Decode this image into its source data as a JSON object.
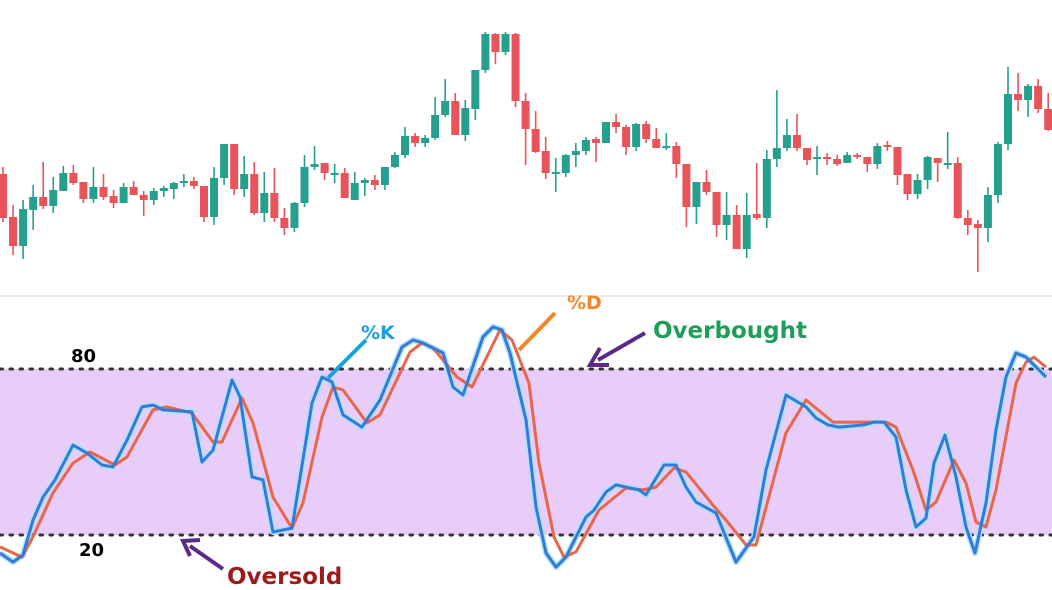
{
  "chart_data": [
    {
      "type": "candlestick",
      "title": "",
      "xlabel": "",
      "ylabel": "",
      "grid": false,
      "colors": {
        "up": "#26a08e",
        "down": "#e8545a"
      },
      "candles_ohlc": [
        [
          126,
          133,
          78,
          82
        ],
        [
          83,
          95,
          45,
          54
        ],
        [
          54,
          100,
          41,
          91
        ],
        [
          90,
          115,
          70,
          103
        ],
        [
          103,
          138,
          91,
          94
        ],
        [
          94,
          123,
          87,
          110
        ],
        [
          109,
          134,
          109,
          127
        ],
        [
          127,
          135,
          115,
          117
        ],
        [
          118,
          118,
          97,
          101
        ],
        [
          101,
          133,
          97,
          113
        ],
        [
          113,
          126,
          100,
          103
        ],
        [
          104,
          110,
          92,
          97
        ],
        [
          97,
          117,
          97,
          113
        ],
        [
          113,
          119,
          105,
          105
        ],
        [
          105,
          109,
          84,
          100
        ],
        [
          100,
          112,
          95,
          109
        ],
        [
          109,
          114,
          103,
          112
        ],
        [
          111,
          118,
          101,
          117
        ],
        [
          117,
          126,
          113,
          119
        ],
        [
          119,
          123,
          111,
          114
        ],
        [
          114,
          114,
          78,
          83
        ],
        [
          83,
          133,
          75,
          122
        ],
        [
          122,
          156,
          115,
          156
        ],
        [
          156,
          156,
          105,
          111
        ],
        [
          111,
          144,
          103,
          126
        ],
        [
          126,
          138,
          85,
          87
        ],
        [
          87,
          128,
          78,
          107
        ],
        [
          107,
          132,
          78,
          82
        ],
        [
          82,
          92,
          65,
          72
        ],
        [
          72,
          98,
          68,
          97
        ],
        [
          97,
          145,
          93,
          133
        ],
        [
          133,
          154,
          130,
          136
        ],
        [
          137,
          137,
          120,
          127
        ],
        [
          127,
          136,
          117,
          127
        ],
        [
          127,
          132,
          102,
          102
        ],
        [
          100,
          128,
          100,
          117
        ],
        [
          117,
          122,
          104,
          120
        ],
        [
          120,
          125,
          110,
          115
        ],
        [
          115,
          133,
          110,
          133
        ],
        [
          133,
          148,
          132,
          145
        ],
        [
          145,
          173,
          142,
          164
        ],
        [
          164,
          167,
          153,
          157
        ],
        [
          157,
          165,
          153,
          162
        ],
        [
          162,
          203,
          160,
          185
        ],
        [
          185,
          221,
          183,
          199
        ],
        [
          199,
          207,
          165,
          165
        ],
        [
          165,
          200,
          159,
          192
        ],
        [
          191,
          230,
          180,
          230
        ],
        [
          230,
          268,
          227,
          266
        ],
        [
          266,
          267,
          236,
          248
        ],
        [
          248,
          268,
          245,
          266
        ],
        [
          266,
          267,
          193,
          199
        ],
        [
          199,
          207,
          135,
          171
        ],
        [
          171,
          189,
          147,
          148
        ],
        [
          149,
          163,
          121,
          127
        ],
        [
          128,
          142,
          108,
          128
        ],
        [
          127,
          146,
          123,
          145
        ],
        [
          145,
          157,
          133,
          149
        ],
        [
          149,
          163,
          145,
          160
        ],
        [
          161,
          163,
          138,
          157
        ],
        [
          157,
          178,
          157,
          178
        ],
        [
          178,
          186,
          167,
          173
        ],
        [
          173,
          175,
          145,
          153
        ],
        [
          153,
          177,
          149,
          176
        ],
        [
          176,
          179,
          157,
          161
        ],
        [
          161,
          172,
          152,
          152
        ],
        [
          152,
          167,
          150,
          154
        ],
        [
          154,
          158,
          122,
          136
        ],
        [
          136,
          136,
          73,
          93
        ],
        [
          93,
          118,
          76,
          118
        ],
        [
          118,
          130,
          105,
          108
        ],
        [
          108,
          108,
          63,
          75
        ],
        [
          75,
          108,
          60,
          85
        ],
        [
          85,
          95,
          51,
          51
        ],
        [
          51,
          107,
          42,
          85
        ],
        [
          86,
          137,
          80,
          82
        ],
        [
          82,
          150,
          72,
          141
        ],
        [
          141,
          210,
          133,
          152
        ],
        [
          152,
          181,
          149,
          165
        ],
        [
          165,
          186,
          149,
          152
        ],
        [
          152,
          152,
          135,
          140
        ],
        [
          141,
          154,
          125,
          143
        ],
        [
          143,
          147,
          135,
          141
        ],
        [
          141,
          145,
          134,
          136
        ],
        [
          137,
          148,
          137,
          145
        ],
        [
          145,
          147,
          141,
          143
        ],
        [
          143,
          143,
          128,
          136
        ],
        [
          136,
          157,
          131,
          154
        ],
        [
          155,
          159,
          149,
          153
        ],
        [
          153,
          153,
          115,
          125
        ],
        [
          126,
          126,
          100,
          106
        ],
        [
          106,
          126,
          101,
          120
        ],
        [
          120,
          144,
          111,
          143
        ],
        [
          142,
          142,
          118,
          137
        ],
        [
          137,
          168,
          131,
          137
        ],
        [
          137,
          143,
          81,
          82
        ],
        [
          82,
          90,
          65,
          75
        ],
        [
          76,
          80,
          28,
          72
        ],
        [
          72,
          113,
          58,
          105
        ],
        [
          105,
          158,
          97,
          156
        ],
        [
          156,
          233,
          150,
          206
        ],
        [
          206,
          227,
          189,
          200
        ],
        [
          200,
          216,
          183,
          214
        ],
        [
          214,
          221,
          187,
          191
        ],
        [
          191,
          207,
          169,
          170
        ]
      ]
    },
    {
      "type": "line",
      "title": "",
      "xlabel": "",
      "ylabel": "",
      "ylim": [
        8,
        97
      ],
      "grid": false,
      "levels": [
        {
          "value": 80,
          "label": "80",
          "annotation": "Overbought"
        },
        {
          "value": 20,
          "label": "20",
          "annotation": "Oversold"
        }
      ],
      "band_color": "#e8ccfa",
      "series": [
        {
          "name": "%K",
          "color": "#3a78d8",
          "label_color": "#1aa0e0",
          "points": [
            [
              0,
              13.5
            ],
            [
              1.3,
              10.2
            ],
            [
              2.3,
              12.8
            ],
            [
              3.3,
              25.4
            ],
            [
              4.3,
              33.7
            ],
            [
              5.5,
              39.9
            ],
            [
              7.3,
              52.5
            ],
            [
              8.7,
              49.6
            ],
            [
              10.2,
              45.3
            ],
            [
              11.3,
              44.6
            ],
            [
              12.7,
              54.3
            ],
            [
              14.2,
              66.3
            ],
            [
              15.3,
              67
            ],
            [
              16.3,
              65.2
            ],
            [
              19.2,
              64.5
            ],
            [
              20.2,
              46.4
            ],
            [
              21.3,
              50.7
            ],
            [
              23.2,
              76
            ],
            [
              24,
              69.9
            ],
            [
              25.2,
              41
            ],
            [
              26.3,
              39.9
            ],
            [
              27.3,
              21.1
            ],
            [
              29.2,
              22.5
            ],
            [
              31.2,
              67.7
            ],
            [
              32.2,
              77.1
            ],
            [
              33.2,
              75.3
            ],
            [
              34.3,
              63.4
            ],
            [
              36.2,
              59
            ],
            [
              38,
              68.8
            ],
            [
              40.2,
              87.9
            ],
            [
              41.3,
              90.5
            ],
            [
              42.3,
              89.4
            ],
            [
              44.3,
              85.8
            ],
            [
              45.3,
              73.5
            ],
            [
              46.3,
              70.6
            ],
            [
              48.3,
              91.6
            ],
            [
              49.3,
              95.2
            ],
            [
              50.2,
              94.1
            ],
            [
              51,
              85.8
            ],
            [
              52.6,
              61.6
            ],
            [
              53.6,
              30.1
            ],
            [
              54.6,
              13.5
            ],
            [
              55.6,
              8.4
            ],
            [
              56.6,
              12
            ],
            [
              58.6,
              26.5
            ],
            [
              59.4,
              29
            ],
            [
              60.6,
              35.5
            ],
            [
              61.6,
              38.1
            ],
            [
              63.9,
              36.3
            ],
            [
              64.6,
              34.5
            ],
            [
              66.4,
              45.3
            ],
            [
              67.6,
              45.3
            ],
            [
              68.6,
              37.3
            ],
            [
              69.6,
              31.9
            ],
            [
              71.6,
              28
            ],
            [
              73.6,
              10.2
            ],
            [
              75.4,
              19.3
            ],
            [
              76.6,
              43.5
            ],
            [
              78.6,
              70.6
            ],
            [
              80.6,
              66.3
            ],
            [
              81.6,
              62.3
            ],
            [
              82.8,
              59.8
            ],
            [
              83.9,
              59
            ],
            [
              86.4,
              59.8
            ],
            [
              87.4,
              60.8
            ],
            [
              88.4,
              60.8
            ],
            [
              89.6,
              55.4
            ],
            [
              90.6,
              36.3
            ],
            [
              91.6,
              22.9
            ],
            [
              92.6,
              26.1
            ],
            [
              93.4,
              46
            ],
            [
              94.5,
              56.1
            ],
            [
              95.6,
              41
            ],
            [
              96.6,
              22.9
            ],
            [
              97.5,
              13.5
            ],
            [
              98.6,
              31.6
            ],
            [
              99.6,
              58
            ],
            [
              100.6,
              77.1
            ],
            [
              101.6,
              85.8
            ],
            [
              102.6,
              84.3
            ],
            [
              104.6,
              77.1
            ]
          ]
        },
        {
          "name": "%D",
          "color": "#e8674a",
          "label_color": "#f0882a",
          "points": [
            [
              0,
              15.7
            ],
            [
              2.2,
              12
            ],
            [
              3.3,
              19.3
            ],
            [
              5.3,
              35.2
            ],
            [
              7.3,
              46
            ],
            [
              9,
              50
            ],
            [
              11.5,
              45.3
            ],
            [
              12.7,
              48.2
            ],
            [
              15.3,
              65.2
            ],
            [
              16.7,
              66.3
            ],
            [
              19.2,
              64.1
            ],
            [
              21.3,
              53.6
            ],
            [
              22.2,
              53.6
            ],
            [
              24.2,
              69.5
            ],
            [
              25.3,
              60.5
            ],
            [
              27.3,
              33.7
            ],
            [
              29.2,
              22.5
            ],
            [
              30.3,
              31.6
            ],
            [
              32.2,
              62.6
            ],
            [
              33.3,
              73.5
            ],
            [
              34.3,
              72.4
            ],
            [
              36.7,
              60.5
            ],
            [
              38,
              63.4
            ],
            [
              41,
              86.1
            ],
            [
              42.2,
              89.4
            ],
            [
              43.3,
              87.6
            ],
            [
              45.7,
              77.1
            ],
            [
              47.2,
              73.5
            ],
            [
              50,
              94.1
            ],
            [
              51.2,
              90.5
            ],
            [
              52.9,
              74.9
            ],
            [
              53.9,
              46
            ],
            [
              55.4,
              19.3
            ],
            [
              56.4,
              12
            ],
            [
              57.6,
              13.9
            ],
            [
              59.9,
              29
            ],
            [
              62.6,
              37
            ],
            [
              64.3,
              36.3
            ],
            [
              65.6,
              37.3
            ],
            [
              67.4,
              44.2
            ],
            [
              68.6,
              42.8
            ],
            [
              71.3,
              30.8
            ],
            [
              72.6,
              25.4
            ],
            [
              74.6,
              16.4
            ],
            [
              75.6,
              16.4
            ],
            [
              78.6,
              56.9
            ],
            [
              80.6,
              68.8
            ],
            [
              83.3,
              60.8
            ],
            [
              88.6,
              60.8
            ],
            [
              89.6,
              59
            ],
            [
              91.3,
              43.5
            ],
            [
              92.6,
              29
            ],
            [
              93.6,
              31.9
            ],
            [
              95.4,
              47.1
            ],
            [
              96.6,
              38.8
            ],
            [
              97.6,
              24.7
            ],
            [
              98.6,
              22.9
            ],
            [
              99.6,
              36.3
            ],
            [
              101.6,
              74.9
            ],
            [
              102.6,
              82.5
            ],
            [
              103.4,
              84.3
            ],
            [
              104.6,
              80.7
            ]
          ]
        }
      ]
    }
  ],
  "annotations": {
    "level_high": "80",
    "level_low": "20",
    "k_label": "%K",
    "d_label": "%D",
    "overbought": "Overbought",
    "oversold": "Oversold",
    "overbought_color": "#1e9e5a",
    "oversold_color": "#9e1b1b",
    "arrow_color": "#5b2a86"
  }
}
